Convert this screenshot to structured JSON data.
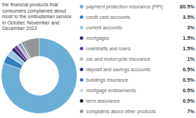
{
  "chart_data": {
    "type": "pie",
    "title": "the financial products that\nconsumers complained about\nmost to the ombudsman service\nin October, November and\nDecember 2012",
    "categories": [
      "payment protection insurance (PPI)",
      "credit card accounts",
      "current accounts",
      "mortgages",
      "overdrafts and loans",
      "car and motorcycle insurance",
      "deposit and savings accounts",
      "buildings insurance",
      "mortgage endowments",
      "term assurance",
      "complaints about other products"
    ],
    "values": [
      80.5,
      3.5,
      3.0,
      1.5,
      1.5,
      1.0,
      0.5,
      0.5,
      0.5,
      0.5,
      7.0
    ],
    "value_labels": [
      "80.5%",
      "3.5%",
      "3%",
      "1.5%",
      "1.5%",
      "1%",
      "0.5%",
      "0.5%",
      "0.5%",
      "0.5%",
      "7%"
    ],
    "colors": [
      "#6baed6",
      "#3182bd",
      "#9ecae1",
      "#2c2c6e",
      "#6a3d9a",
      "#bdbdbd",
      "#253494",
      "#4575b4",
      "#c6dbef",
      "#252525",
      "#969696"
    ],
    "legend": "right"
  }
}
